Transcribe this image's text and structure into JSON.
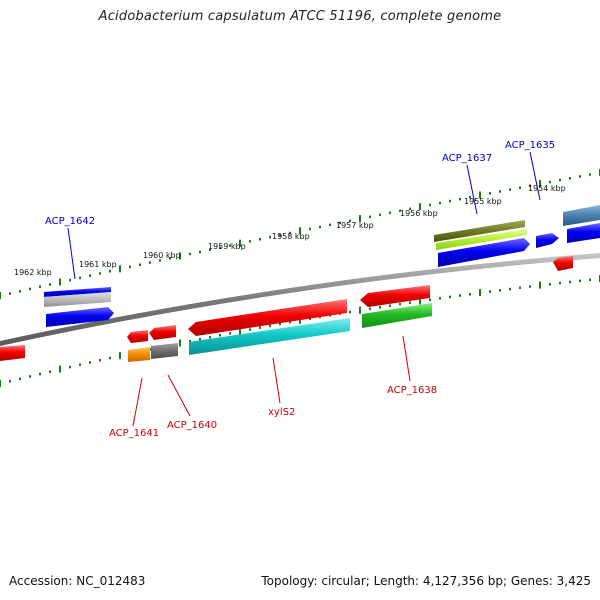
{
  "title": "Acidobacterium capsulatum ATCC 51196, complete genome",
  "footer": {
    "accession": "Accession: NC_012483",
    "summary": "Topology: circular; Length: 4,127,356 bp; Genes: 3,425"
  },
  "colors": {
    "backbone": "#8a8a8a",
    "tick": "#1a7a1a",
    "label_forward": "#0000cc",
    "label_reverse": "#cc0000"
  },
  "tick_labels": [
    "1962 kbp",
    "1961 kbp",
    "1960 kbp",
    "1959 kbp",
    "1958 kbp",
    "1957 kbp",
    "1956 kbp",
    "1955 kbp",
    "1954 kbp"
  ],
  "genes": [
    {
      "name": "ACP_1642",
      "strand": "forward"
    },
    {
      "name": "ACP_1637",
      "strand": "forward"
    },
    {
      "name": "ACP_1635",
      "strand": "forward"
    },
    {
      "name": "ACP_1641",
      "strand": "reverse"
    },
    {
      "name": "ACP_1640",
      "strand": "reverse"
    },
    {
      "name": "xylS2",
      "strand": "reverse"
    },
    {
      "name": "ACP_1638",
      "strand": "reverse"
    }
  ]
}
